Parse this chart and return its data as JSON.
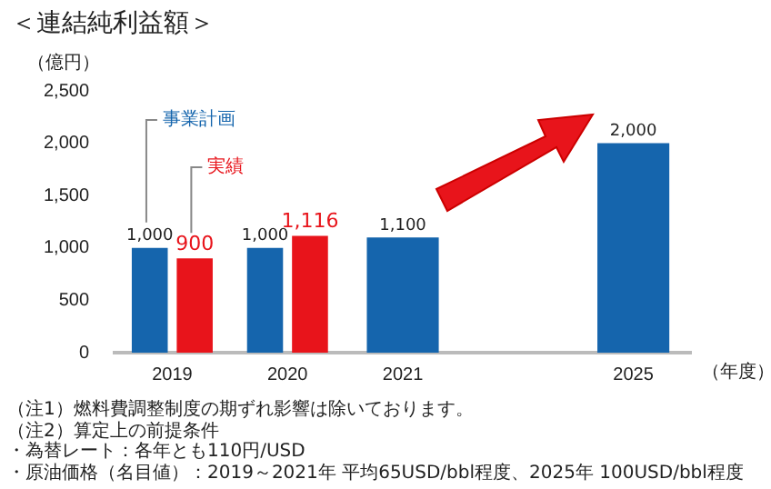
{
  "chart_data": {
    "type": "bar",
    "title": "＜連結純利益額＞",
    "ylabel": "（億円）",
    "xlabel": "（年度）",
    "categories": [
      "2019",
      "2020",
      "2021",
      null,
      "2025"
    ],
    "series": [
      {
        "name": "事業計画",
        "color": "#1565ad",
        "values": [
          1000,
          1000,
          1100,
          null,
          2000
        ],
        "value_labels": [
          "1,000",
          "1,000",
          "1,100",
          null,
          "2,000"
        ]
      },
      {
        "name": "実績",
        "color": "#e8141b",
        "values": [
          900,
          1116,
          null,
          null,
          null
        ],
        "value_labels": [
          "900",
          "1,116",
          null,
          null,
          null
        ]
      }
    ],
    "ylim": [
      0,
      2500
    ],
    "yticks": [
      0,
      500,
      {
        "value": 1000,
        "label": "1,000"
      },
      {
        "value": 1500,
        "label": "1,500"
      },
      {
        "value": 2000,
        "label": "2,000"
      },
      {
        "value": 2500,
        "label": "2,500"
      }
    ],
    "grid": false,
    "legend": false,
    "annotations": [
      "（注1）燃料費調整制度の期ずれ影響は除いております。",
      "（注2）算定上の前提条件",
      "・為替レート：各年とも110円/USD",
      "・原油価格（名目値）：2019～2021年 平均65USD/bbl程度、2025年 100USD/bbl程度"
    ]
  }
}
